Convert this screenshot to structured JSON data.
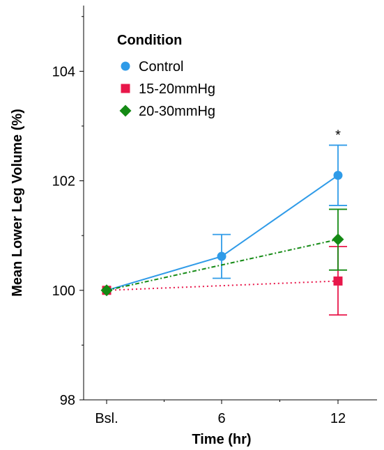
{
  "chart_data": {
    "type": "line",
    "xlabel": "Time (hr)",
    "ylabel": "Mean  Lower Leg Volume (%)",
    "categories": [
      "Bsl.",
      "6",
      "12"
    ],
    "ylim": [
      98,
      105.2
    ],
    "yticks": [
      98,
      100,
      102,
      104
    ],
    "legend": {
      "title": "Condition",
      "placement": "top-left"
    },
    "series": [
      {
        "name": "Control",
        "color": "#2f9be8",
        "marker": "circle",
        "line": "solid",
        "points": [
          {
            "x": "Bsl.",
            "y": 100.0
          },
          {
            "x": "6",
            "y": 100.62,
            "err_low": 100.22,
            "err_high": 101.02
          },
          {
            "x": "12",
            "y": 102.1,
            "err_low": 101.55,
            "err_high": 102.65
          }
        ]
      },
      {
        "name": "15-20mmHg",
        "color": "#e8174a",
        "marker": "square",
        "line": "dotted",
        "points": [
          {
            "x": "Bsl.",
            "y": 100.0
          },
          {
            "x": "12",
            "y": 100.17,
            "err_low": 99.55,
            "err_high": 100.8
          }
        ]
      },
      {
        "name": "20-30mmHg",
        "color": "#148a14",
        "marker": "diamond",
        "line": "dashed",
        "points": [
          {
            "x": "Bsl.",
            "y": 100.0
          },
          {
            "x": "12",
            "y": 100.93,
            "err_low": 100.37,
            "err_high": 101.48
          }
        ]
      }
    ],
    "annotations": [
      {
        "text": "*",
        "x": "12",
        "y": 102.75
      }
    ]
  }
}
